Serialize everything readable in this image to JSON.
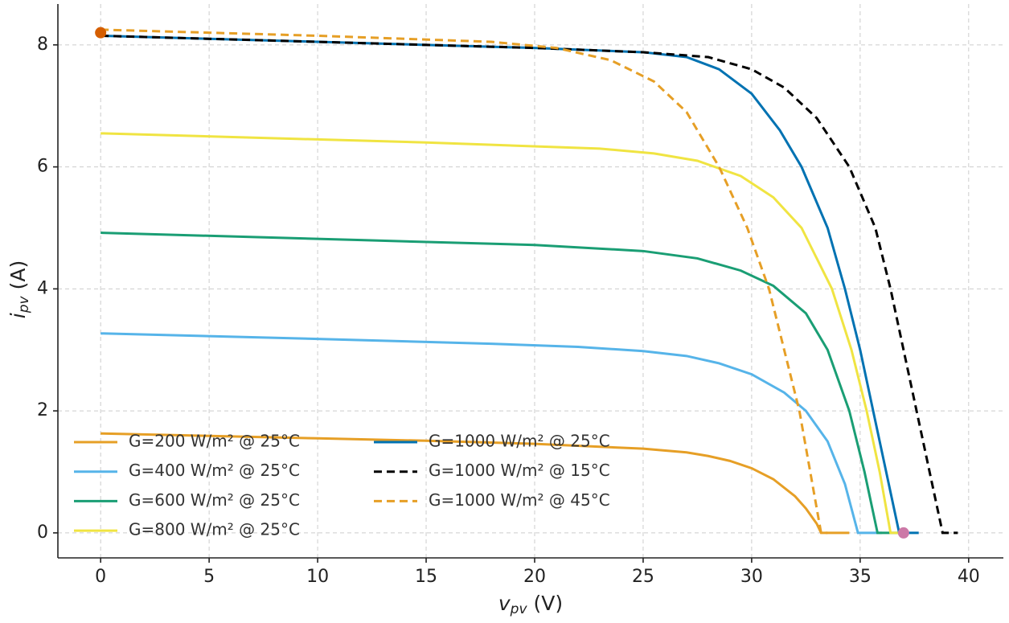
{
  "chart_data": {
    "type": "line",
    "xlabel": {
      "var": "v",
      "sub": "pv",
      "unit": "(V)"
    },
    "ylabel": {
      "var": "i",
      "sub": "pv",
      "unit": "(A)"
    },
    "xlim": [
      -1.97,
      41.6
    ],
    "ylim": [
      -0.41,
      8.67
    ],
    "xticks": [
      0,
      5,
      10,
      15,
      20,
      25,
      30,
      35,
      40
    ],
    "yticks": [
      0,
      2,
      4,
      6,
      8
    ],
    "grid": true,
    "legend": "lower left",
    "series": [
      {
        "name": "G=200 W/m² @ 25°C",
        "color": "#e69f26",
        "dashed": false,
        "x": [
          0,
          5,
          10,
          15,
          20,
          25,
          27,
          28,
          29,
          30,
          31,
          32,
          32.5,
          33,
          33.2,
          34.5
        ],
        "values": [
          1.63,
          1.59,
          1.55,
          1.51,
          1.46,
          1.38,
          1.32,
          1.26,
          1.18,
          1.06,
          0.88,
          0.6,
          0.4,
          0.15,
          0,
          0
        ]
      },
      {
        "name": "G=400 W/m² @ 25°C",
        "color": "#56b4e9",
        "dashed": false,
        "x": [
          0,
          10,
          18,
          22,
          25,
          27,
          28.5,
          30,
          31.5,
          32.5,
          33.5,
          34.3,
          34.9,
          36
        ],
        "values": [
          3.27,
          3.18,
          3.1,
          3.05,
          2.98,
          2.9,
          2.78,
          2.6,
          2.3,
          2.0,
          1.5,
          0.8,
          0,
          0
        ]
      },
      {
        "name": "G=600 W/m² @ 25°C",
        "color": "#1a9e74",
        "dashed": false,
        "x": [
          0,
          12,
          20,
          25,
          27.5,
          29.5,
          31,
          32.5,
          33.5,
          34.5,
          35.2,
          35.8,
          37
        ],
        "values": [
          4.92,
          4.8,
          4.72,
          4.62,
          4.5,
          4.3,
          4.05,
          3.6,
          3,
          2,
          1,
          0,
          0
        ]
      },
      {
        "name": "G=800 W/m² @ 25°C",
        "color": "#f0e442",
        "dashed": false,
        "x": [
          0,
          15,
          23,
          25.5,
          27.5,
          29.5,
          31,
          32.3,
          33.7,
          34.6,
          35.3,
          35.9,
          36.4,
          37
        ],
        "values": [
          6.55,
          6.4,
          6.3,
          6.22,
          6.1,
          5.85,
          5.5,
          5,
          4,
          3,
          2,
          1,
          0,
          0
        ]
      },
      {
        "name": "G=1000 W/m² @ 25°C",
        "color": "#0072b2",
        "dashed": false,
        "x": [
          0,
          10,
          20,
          25,
          27,
          28.5,
          30,
          31.3,
          32.3,
          33.5,
          34.3,
          35,
          35.6,
          36.2,
          36.8,
          37.7
        ],
        "values": [
          8.15,
          8.05,
          7.95,
          7.88,
          7.8,
          7.6,
          7.2,
          6.6,
          6,
          5,
          4,
          3,
          2,
          1,
          0,
          0
        ]
      },
      {
        "name": "G=1000 W/m² @ 15°C",
        "color": "#000000",
        "dashed": true,
        "x": [
          0,
          10,
          20,
          25,
          28,
          30,
          31.5,
          33,
          34.5,
          35.7,
          36.4,
          37,
          37.6,
          38.2,
          38.8,
          39.5
        ],
        "values": [
          8.15,
          8.05,
          7.95,
          7.88,
          7.8,
          7.6,
          7.3,
          6.8,
          6,
          5,
          4,
          3,
          2,
          1,
          0,
          0
        ]
      },
      {
        "name": "G=1000 W/m² @ 45°C",
        "color": "#e69f26",
        "dashed": true,
        "x": [
          0,
          10,
          18,
          21,
          23.5,
          25.5,
          27,
          28.5,
          29.8,
          30.8,
          31.5,
          32.2,
          32.7,
          33.2,
          33.5
        ],
        "values": [
          8.25,
          8.15,
          8.05,
          7.95,
          7.75,
          7.4,
          6.9,
          6,
          5,
          4,
          3,
          2,
          1,
          0,
          0
        ]
      }
    ],
    "markers": [
      {
        "x": 0,
        "y": 8.2,
        "color": "#d55e00"
      },
      {
        "x": 37,
        "y": 0,
        "color": "#cc79a7"
      }
    ]
  }
}
